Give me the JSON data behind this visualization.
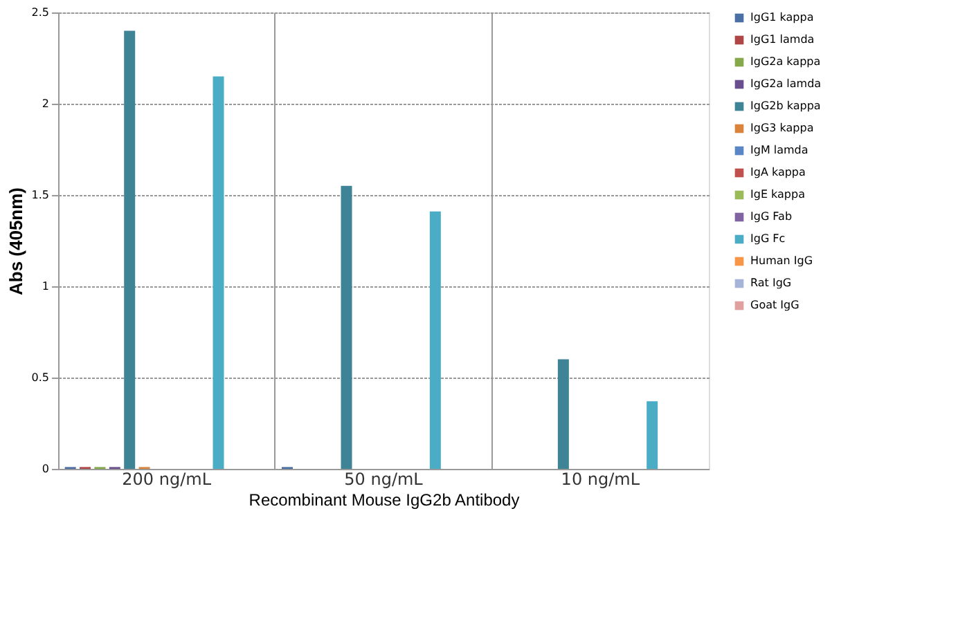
{
  "chart_data": {
    "type": "bar",
    "xlabel": "Recombinant Mouse IgG2b Antibody",
    "ylabel": "Abs (405nm)",
    "categories": [
      "200 ng/mL",
      "50 ng/mL",
      "10 ng/mL"
    ],
    "ylim": [
      0,
      2.5
    ],
    "yticks": [
      0,
      0.5,
      1,
      1.5,
      2,
      2.5
    ],
    "grid": true,
    "legend": "right",
    "series": [
      {
        "name": "IgG1 kappa",
        "color": "#4a6fa5",
        "values": [
          0.01,
          0.01,
          0
        ]
      },
      {
        "name": "IgG1 lamda",
        "color": "#b04545",
        "values": [
          0.01,
          0,
          0
        ]
      },
      {
        "name": "IgG2a kappa",
        "color": "#84a84a",
        "values": [
          0.01,
          0,
          0
        ]
      },
      {
        "name": "IgG2a lamda",
        "color": "#6a4f8f",
        "values": [
          0.01,
          0,
          0
        ]
      },
      {
        "name": "IgG2b kappa",
        "color": "#3f8397",
        "values": [
          2.4,
          1.55,
          0.6
        ]
      },
      {
        "name": "IgG3 kappa",
        "color": "#d9843a",
        "values": [
          0.01,
          0,
          0
        ]
      },
      {
        "name": "IgM lamda",
        "color": "#5b86c5",
        "values": [
          0,
          0,
          0
        ]
      },
      {
        "name": "IgA kappa",
        "color": "#c0504d",
        "values": [
          0,
          0,
          0
        ]
      },
      {
        "name": "IgE kappa",
        "color": "#9bbb59",
        "values": [
          0,
          0,
          0
        ]
      },
      {
        "name": "IgG Fab",
        "color": "#8064a2",
        "values": [
          0,
          0,
          0
        ]
      },
      {
        "name": "IgG Fc",
        "color": "#4bacc6",
        "values": [
          2.15,
          1.41,
          0.37
        ]
      },
      {
        "name": "Human IgG",
        "color": "#f79646",
        "values": [
          0,
          0,
          0
        ]
      },
      {
        "name": "Rat IgG",
        "color": "#a5b4d8",
        "values": [
          0,
          0,
          0
        ]
      },
      {
        "name": "Goat IgG",
        "color": "#e0a0a0",
        "values": [
          0,
          0,
          0
        ]
      }
    ]
  }
}
